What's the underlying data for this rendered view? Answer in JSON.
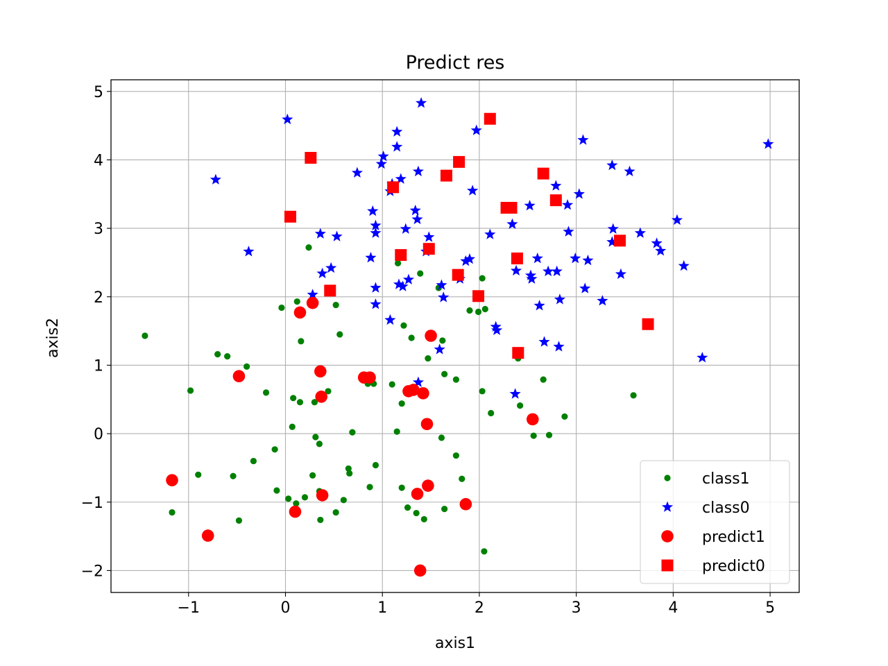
{
  "chart_data": {
    "type": "scatter",
    "title": "Predict res",
    "xlabel": "axis1",
    "ylabel": "axis2",
    "xlim": [
      -1.8,
      5.3
    ],
    "ylim": [
      -2.32,
      5.17
    ],
    "x_ticks": [
      -1,
      0,
      1,
      2,
      3,
      4,
      5
    ],
    "x_tick_labels": [
      "−1",
      "0",
      "1",
      "2",
      "3",
      "4",
      "5"
    ],
    "y_ticks": [
      -2,
      -1,
      0,
      1,
      2,
      3,
      4,
      5
    ],
    "y_tick_labels": [
      "−2",
      "−1",
      "0",
      "1",
      "2",
      "3",
      "4",
      "5"
    ],
    "grid": true,
    "legend_position": "lower right",
    "series": [
      {
        "name": "class1",
        "marker": "dot",
        "color": "#008000",
        "points": [
          [
            -1.45,
            1.43
          ],
          [
            -0.98,
            0.63
          ],
          [
            -0.7,
            1.16
          ],
          [
            -0.6,
            1.13
          ],
          [
            -0.4,
            0.98
          ],
          [
            -0.04,
            1.84
          ],
          [
            0.24,
            2.72
          ],
          [
            0.12,
            1.93
          ],
          [
            0.16,
            1.35
          ],
          [
            0.08,
            0.52
          ],
          [
            0.15,
            0.46
          ],
          [
            0.3,
            0.46
          ],
          [
            0.44,
            0.62
          ],
          [
            0.07,
            0.1
          ],
          [
            -0.2,
            0.6
          ],
          [
            -0.9,
            -0.6
          ],
          [
            -0.54,
            -0.62
          ],
          [
            -0.33,
            -0.4
          ],
          [
            -0.11,
            -0.23
          ],
          [
            -0.09,
            -0.83
          ],
          [
            0.03,
            -0.95
          ],
          [
            0.11,
            -1.02
          ],
          [
            0.2,
            -0.93
          ],
          [
            0.31,
            -0.05
          ],
          [
            0.35,
            -0.15
          ],
          [
            0.28,
            -0.61
          ],
          [
            0.35,
            -0.84
          ],
          [
            0.36,
            -1.26
          ],
          [
            0.52,
            -1.15
          ],
          [
            0.6,
            -0.97
          ],
          [
            0.65,
            -0.51
          ],
          [
            0.66,
            -0.58
          ],
          [
            0.69,
            0.02
          ],
          [
            0.56,
            1.45
          ],
          [
            0.52,
            1.88
          ],
          [
            0.85,
            0.73
          ],
          [
            0.91,
            0.73
          ],
          [
            0.93,
            -0.46
          ],
          [
            0.87,
            -0.78
          ],
          [
            1.1,
            0.72
          ],
          [
            1.15,
            0.03
          ],
          [
            1.2,
            -0.79
          ],
          [
            1.26,
            -1.08
          ],
          [
            1.35,
            -1.16
          ],
          [
            1.43,
            -1.25
          ],
          [
            1.2,
            0.44
          ],
          [
            1.3,
            1.4
          ],
          [
            1.22,
            1.58
          ],
          [
            1.47,
            1.1
          ],
          [
            1.58,
            2.13
          ],
          [
            1.62,
            1.36
          ],
          [
            1.64,
            0.87
          ],
          [
            1.61,
            -0.06
          ],
          [
            1.64,
            -1.1
          ],
          [
            1.76,
            0.79
          ],
          [
            1.76,
            -0.32
          ],
          [
            1.82,
            -0.66
          ],
          [
            1.9,
            1.8
          ],
          [
            1.99,
            1.78
          ],
          [
            2.03,
            0.62
          ],
          [
            2.03,
            2.27
          ],
          [
            2.06,
            1.82
          ],
          [
            2.12,
            0.3
          ],
          [
            2.05,
            -1.72
          ],
          [
            2.4,
            1.1
          ],
          [
            2.42,
            0.41
          ],
          [
            2.56,
            -0.03
          ],
          [
            2.66,
            0.79
          ],
          [
            2.72,
            -0.02
          ],
          [
            2.88,
            0.25
          ],
          [
            3.59,
            0.56
          ],
          [
            1.16,
            2.49
          ],
          [
            1.39,
            2.34
          ],
          [
            -1.17,
            -1.15
          ],
          [
            -0.48,
            -1.27
          ]
        ]
      },
      {
        "name": "class0",
        "marker": "star",
        "color": "#0000ff",
        "points": [
          [
            -0.72,
            3.71
          ],
          [
            0.02,
            4.59
          ],
          [
            -0.38,
            2.66
          ],
          [
            0.36,
            2.92
          ],
          [
            0.53,
            2.88
          ],
          [
            0.38,
            2.34
          ],
          [
            0.47,
            2.42
          ],
          [
            0.28,
            2.03
          ],
          [
            0.74,
            3.81
          ],
          [
            0.9,
            3.25
          ],
          [
            0.93,
            3.04
          ],
          [
            0.93,
            2.93
          ],
          [
            0.88,
            2.57
          ],
          [
            0.93,
            2.13
          ],
          [
            0.93,
            1.89
          ],
          [
            0.99,
            3.94
          ],
          [
            1.01,
            4.05
          ],
          [
            1.08,
            3.54
          ],
          [
            1.15,
            4.41
          ],
          [
            1.15,
            4.19
          ],
          [
            1.19,
            3.72
          ],
          [
            1.1,
            3.65
          ],
          [
            1.34,
            3.26
          ],
          [
            1.36,
            3.13
          ],
          [
            1.24,
            2.99
          ],
          [
            1.27,
            2.25
          ],
          [
            1.17,
            2.18
          ],
          [
            1.21,
            2.15
          ],
          [
            1.08,
            1.66
          ],
          [
            1.4,
            4.83
          ],
          [
            1.37,
            3.83
          ],
          [
            1.48,
            2.87
          ],
          [
            1.45,
            2.66
          ],
          [
            1.61,
            2.17
          ],
          [
            1.63,
            1.99
          ],
          [
            1.59,
            1.23
          ],
          [
            1.37,
            0.75
          ],
          [
            1.93,
            3.55
          ],
          [
            1.97,
            4.43
          ],
          [
            1.9,
            2.55
          ],
          [
            1.86,
            2.52
          ],
          [
            1.8,
            2.26
          ],
          [
            2.11,
            2.91
          ],
          [
            2.17,
            1.56
          ],
          [
            2.18,
            1.51
          ],
          [
            2.34,
            3.06
          ],
          [
            2.38,
            2.38
          ],
          [
            2.37,
            0.58
          ],
          [
            2.52,
            3.33
          ],
          [
            2.53,
            2.31
          ],
          [
            2.54,
            2.26
          ],
          [
            2.6,
            2.56
          ],
          [
            2.62,
            1.87
          ],
          [
            2.67,
            1.34
          ],
          [
            2.71,
            2.37
          ],
          [
            2.79,
            3.62
          ],
          [
            2.8,
            2.37
          ],
          [
            2.83,
            1.96
          ],
          [
            2.82,
            1.27
          ],
          [
            2.91,
            3.34
          ],
          [
            2.92,
            2.95
          ],
          [
            2.99,
            2.56
          ],
          [
            3.03,
            3.5
          ],
          [
            3.07,
            4.29
          ],
          [
            3.09,
            2.12
          ],
          [
            3.12,
            2.53
          ],
          [
            3.27,
            1.94
          ],
          [
            3.37,
            3.92
          ],
          [
            3.38,
            2.99
          ],
          [
            3.37,
            2.8
          ],
          [
            3.46,
            2.33
          ],
          [
            3.55,
            3.83
          ],
          [
            3.66,
            2.93
          ],
          [
            3.83,
            2.78
          ],
          [
            3.87,
            2.67
          ],
          [
            4.04,
            3.12
          ],
          [
            4.11,
            2.45
          ],
          [
            4.3,
            1.11
          ],
          [
            4.98,
            4.23
          ]
        ]
      },
      {
        "name": "predict1",
        "marker": "circle",
        "color": "#ff0000",
        "points": [
          [
            -1.17,
            -0.68
          ],
          [
            -0.8,
            -1.49
          ],
          [
            -0.48,
            0.84
          ],
          [
            0.1,
            -1.14
          ],
          [
            0.15,
            1.77
          ],
          [
            0.28,
            1.91
          ],
          [
            0.36,
            0.91
          ],
          [
            0.37,
            0.54
          ],
          [
            0.38,
            -0.9
          ],
          [
            0.81,
            0.82
          ],
          [
            0.87,
            0.82
          ],
          [
            1.27,
            0.62
          ],
          [
            1.32,
            0.64
          ],
          [
            1.42,
            0.59
          ],
          [
            1.36,
            -0.88
          ],
          [
            1.47,
            -0.76
          ],
          [
            1.46,
            0.14
          ],
          [
            1.5,
            1.43
          ],
          [
            1.39,
            -2.0
          ],
          [
            1.86,
            -1.03
          ],
          [
            2.55,
            0.21
          ]
        ]
      },
      {
        "name": "predict0",
        "marker": "square",
        "color": "#ff0000",
        "points": [
          [
            0.05,
            3.17
          ],
          [
            0.26,
            4.03
          ],
          [
            0.46,
            2.09
          ],
          [
            1.11,
            3.6
          ],
          [
            1.19,
            2.61
          ],
          [
            1.48,
            2.7
          ],
          [
            1.66,
            3.77
          ],
          [
            1.79,
            3.97
          ],
          [
            1.78,
            2.32
          ],
          [
            1.99,
            2.01
          ],
          [
            2.11,
            4.6
          ],
          [
            2.28,
            3.3
          ],
          [
            2.33,
            3.3
          ],
          [
            2.39,
            2.56
          ],
          [
            2.4,
            1.18
          ],
          [
            2.66,
            3.8
          ],
          [
            2.79,
            3.41
          ],
          [
            3.45,
            2.82
          ],
          [
            3.74,
            1.6
          ]
        ]
      }
    ]
  }
}
